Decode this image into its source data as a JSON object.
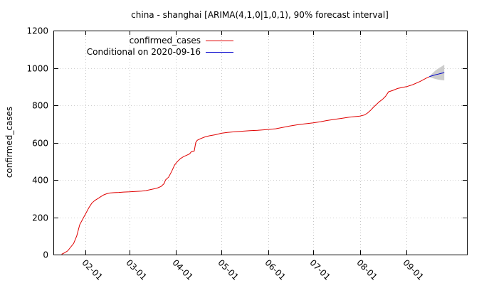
{
  "chart_data": {
    "type": "line",
    "title": "china - shanghai [ARIMA(4,1,0|1,0,1), 90% forecast interval]",
    "xlabel": "",
    "ylabel": "confirmed_cases",
    "ylim": [
      0,
      1200
    ],
    "yticks": [
      0,
      200,
      400,
      600,
      800,
      1000,
      1200
    ],
    "xlim": [
      "2020-01-11",
      "2020-10-11"
    ],
    "xticks": [
      {
        "date": "2020-02-01",
        "label": "02-01"
      },
      {
        "date": "2020-03-01",
        "label": "03-01"
      },
      {
        "date": "2020-04-01",
        "label": "04-01"
      },
      {
        "date": "2020-05-01",
        "label": "05-01"
      },
      {
        "date": "2020-06-01",
        "label": "06-01"
      },
      {
        "date": "2020-07-01",
        "label": "07-01"
      },
      {
        "date": "2020-08-01",
        "label": "08-01"
      },
      {
        "date": "2020-09-01",
        "label": "09-01"
      }
    ],
    "grid": true,
    "legend_position": "top-left",
    "colors": {
      "observed": "#e00000",
      "forecast": "#0000cc",
      "interval": "#c8c8c8"
    },
    "series": [
      {
        "name": "confirmed_cases",
        "color": "#e00000",
        "points": [
          [
            "2020-01-16",
            2
          ],
          [
            "2020-01-18",
            10
          ],
          [
            "2020-01-20",
            20
          ],
          [
            "2020-01-22",
            40
          ],
          [
            "2020-01-24",
            60
          ],
          [
            "2020-01-26",
            100
          ],
          [
            "2020-01-28",
            160
          ],
          [
            "2020-01-30",
            190
          ],
          [
            "2020-02-01",
            220
          ],
          [
            "2020-02-03",
            250
          ],
          [
            "2020-02-05",
            275
          ],
          [
            "2020-02-07",
            290
          ],
          [
            "2020-02-09",
            300
          ],
          [
            "2020-02-11",
            310
          ],
          [
            "2020-02-13",
            320
          ],
          [
            "2020-02-15",
            326
          ],
          [
            "2020-02-17",
            330
          ],
          [
            "2020-02-20",
            332
          ],
          [
            "2020-02-23",
            333
          ],
          [
            "2020-02-26",
            335
          ],
          [
            "2020-03-01",
            336
          ],
          [
            "2020-03-05",
            338
          ],
          [
            "2020-03-09",
            340
          ],
          [
            "2020-03-12",
            343
          ],
          [
            "2020-03-15",
            348
          ],
          [
            "2020-03-18",
            353
          ],
          [
            "2020-03-20",
            358
          ],
          [
            "2020-03-22",
            365
          ],
          [
            "2020-03-24",
            380
          ],
          [
            "2020-03-25",
            400
          ],
          [
            "2020-03-27",
            415
          ],
          [
            "2020-03-29",
            445
          ],
          [
            "2020-03-31",
            480
          ],
          [
            "2020-04-02",
            500
          ],
          [
            "2020-04-04",
            515
          ],
          [
            "2020-04-06",
            525
          ],
          [
            "2020-04-08",
            532
          ],
          [
            "2020-04-10",
            540
          ],
          [
            "2020-04-11",
            550
          ],
          [
            "2020-04-13",
            555
          ],
          [
            "2020-04-14",
            600
          ],
          [
            "2020-04-15",
            612
          ],
          [
            "2020-04-17",
            620
          ],
          [
            "2020-04-20",
            630
          ],
          [
            "2020-04-23",
            636
          ],
          [
            "2020-04-27",
            642
          ],
          [
            "2020-05-01",
            650
          ],
          [
            "2020-05-05",
            654
          ],
          [
            "2020-05-10",
            658
          ],
          [
            "2020-05-15",
            661
          ],
          [
            "2020-05-20",
            664
          ],
          [
            "2020-05-25",
            666
          ],
          [
            "2020-06-01",
            670
          ],
          [
            "2020-06-06",
            674
          ],
          [
            "2020-06-10",
            680
          ],
          [
            "2020-06-15",
            688
          ],
          [
            "2020-06-20",
            695
          ],
          [
            "2020-06-25",
            700
          ],
          [
            "2020-07-01",
            706
          ],
          [
            "2020-07-06",
            712
          ],
          [
            "2020-07-10",
            718
          ],
          [
            "2020-07-15",
            724
          ],
          [
            "2020-07-20",
            730
          ],
          [
            "2020-07-25",
            736
          ],
          [
            "2020-08-01",
            742
          ],
          [
            "2020-08-04",
            748
          ],
          [
            "2020-08-06",
            758
          ],
          [
            "2020-08-08",
            772
          ],
          [
            "2020-08-10",
            790
          ],
          [
            "2020-08-12",
            805
          ],
          [
            "2020-08-14",
            820
          ],
          [
            "2020-08-16",
            832
          ],
          [
            "2020-08-18",
            848
          ],
          [
            "2020-08-20",
            872
          ],
          [
            "2020-08-23",
            880
          ],
          [
            "2020-08-26",
            890
          ],
          [
            "2020-09-01",
            900
          ],
          [
            "2020-09-05",
            910
          ],
          [
            "2020-09-10",
            928
          ],
          [
            "2020-09-14",
            945
          ],
          [
            "2020-09-16",
            952
          ]
        ]
      },
      {
        "name": "Conditional on 2020-09-16",
        "color": "#0000cc",
        "points": [
          [
            "2020-09-16",
            953
          ],
          [
            "2020-09-18",
            958
          ],
          [
            "2020-09-20",
            963
          ],
          [
            "2020-09-22",
            967
          ],
          [
            "2020-09-24",
            971
          ],
          [
            "2020-09-26",
            975
          ]
        ],
        "interval": [
          [
            "2020-09-16",
            950,
            956
          ],
          [
            "2020-09-18",
            946,
            970
          ],
          [
            "2020-09-20",
            941,
            985
          ],
          [
            "2020-09-22",
            937,
            997
          ],
          [
            "2020-09-24",
            935,
            1007
          ],
          [
            "2020-09-26",
            933,
            1017
          ]
        ]
      }
    ]
  }
}
